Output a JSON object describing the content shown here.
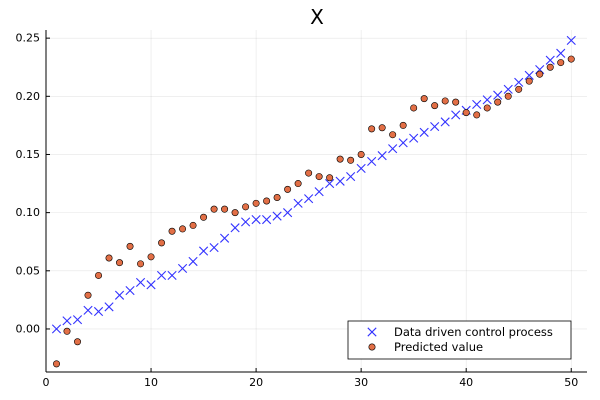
{
  "chart_data": {
    "type": "scatter",
    "title": "X",
    "xlabel": "",
    "ylabel": "",
    "xlim": [
      0,
      51.5
    ],
    "ylim": [
      -0.037,
      0.257
    ],
    "xticks": [
      0,
      10,
      20,
      30,
      40,
      50
    ],
    "xtick_labels": [
      "0",
      "10",
      "20",
      "30",
      "40",
      "50"
    ],
    "yticks": [
      0.0,
      0.05,
      0.1,
      0.15,
      0.2,
      0.25
    ],
    "ytick_labels": [
      "0.00",
      "0.05",
      "0.10",
      "0.15",
      "0.20",
      "0.25"
    ],
    "grid": true,
    "legend_position": "bottom-right",
    "series": [
      {
        "name": "Data driven control process",
        "marker": "x",
        "color": "#3333ff",
        "x": [
          1,
          2,
          3,
          4,
          5,
          6,
          7,
          8,
          9,
          10,
          11,
          12,
          13,
          14,
          15,
          16,
          17,
          18,
          19,
          20,
          21,
          22,
          23,
          24,
          25,
          26,
          27,
          28,
          29,
          30,
          31,
          32,
          33,
          34,
          35,
          36,
          37,
          38,
          39,
          40,
          41,
          42,
          43,
          44,
          45,
          46,
          47,
          48,
          49,
          50
        ],
        "y": [
          0.0,
          0.007,
          0.008,
          0.016,
          0.015,
          0.019,
          0.029,
          0.033,
          0.04,
          0.038,
          0.046,
          0.046,
          0.052,
          0.058,
          0.067,
          0.07,
          0.078,
          0.087,
          0.092,
          0.094,
          0.094,
          0.097,
          0.1,
          0.108,
          0.112,
          0.118,
          0.125,
          0.127,
          0.131,
          0.138,
          0.144,
          0.149,
          0.155,
          0.16,
          0.164,
          0.169,
          0.174,
          0.178,
          0.184,
          0.188,
          0.193,
          0.197,
          0.201,
          0.206,
          0.212,
          0.218,
          0.223,
          0.231,
          0.237,
          0.248
        ]
      },
      {
        "name": "Predicted value",
        "marker": "circle",
        "color": "#e26f46",
        "x": [
          1,
          2,
          3,
          4,
          5,
          6,
          7,
          8,
          9,
          10,
          11,
          12,
          13,
          14,
          15,
          16,
          17,
          18,
          19,
          20,
          21,
          22,
          23,
          24,
          25,
          26,
          27,
          28,
          29,
          30,
          31,
          32,
          33,
          34,
          35,
          36,
          37,
          38,
          39,
          40,
          41,
          42,
          43,
          44,
          45,
          46,
          47,
          48,
          49,
          50
        ],
        "y": [
          -0.03,
          -0.002,
          -0.011,
          0.029,
          0.046,
          0.061,
          0.057,
          0.071,
          0.056,
          0.062,
          0.074,
          0.084,
          0.086,
          0.089,
          0.096,
          0.103,
          0.103,
          0.1,
          0.105,
          0.108,
          0.11,
          0.113,
          0.12,
          0.125,
          0.134,
          0.131,
          0.13,
          0.146,
          0.145,
          0.15,
          0.172,
          0.173,
          0.167,
          0.175,
          0.19,
          0.198,
          0.192,
          0.196,
          0.195,
          0.186,
          0.184,
          0.19,
          0.195,
          0.2,
          0.206,
          0.213,
          0.219,
          0.225,
          0.229,
          0.232
        ]
      }
    ]
  }
}
